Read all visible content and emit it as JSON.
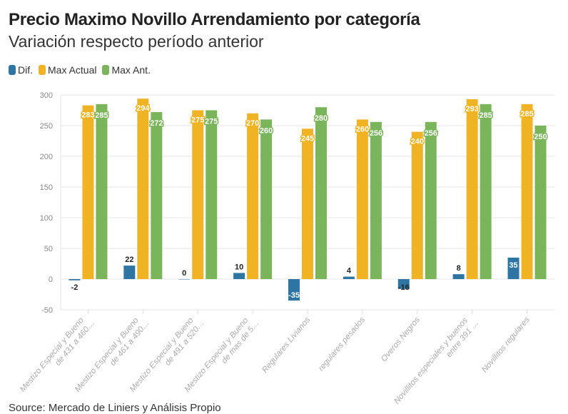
{
  "chart_data": {
    "type": "bar",
    "title": "Precio Maximo Novillo Arrendamiento por categoría",
    "subtitle": "Variación respecto período anterior",
    "categories": [
      "Mestizo Especial y Bueno de 431 a 460…",
      "Mestizo Especial y Bueno de 461 a 490…",
      "Mestizo Especial y Bueno de 491 a 520…",
      "Mestizo Especial y Bueno de mas de 5…",
      "Regulares Livianos",
      "regulares pesados",
      "Overos Negros",
      "Novillitos especiales y buenos entre 391 …",
      "Novillitos regulares"
    ],
    "series": [
      {
        "name": "Dif.",
        "color": "#2e75a3",
        "values": [
          -2,
          22,
          0,
          10,
          -35,
          4,
          -16,
          8,
          35
        ]
      },
      {
        "name": "Max Actual",
        "color": "#f0b323",
        "values": [
          283,
          294,
          275,
          270,
          245,
          260,
          240,
          293,
          285
        ]
      },
      {
        "name": "Max Ant.",
        "color": "#7ab55c",
        "values": [
          285,
          272,
          275,
          260,
          280,
          256,
          256,
          285,
          250
        ]
      }
    ],
    "ylim": [
      -50,
      300
    ],
    "yticks": [
      -50,
      0,
      50,
      100,
      150,
      200,
      250,
      300
    ],
    "grid": true,
    "legend": "top-left",
    "source": "Source: Mercado de Liniers y Análisis Propio"
  }
}
